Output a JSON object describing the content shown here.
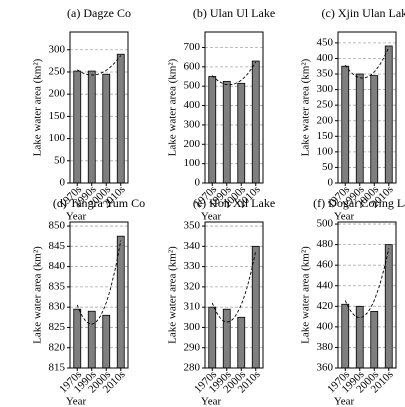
{
  "chart_data": [
    {
      "type": "bar",
      "title": "(a) Dagze Co",
      "categories": [
        "1970s",
        "1990s",
        "2000s",
        "2010s"
      ],
      "values": [
        252,
        252,
        245,
        290
      ],
      "color": "#7f7f7f",
      "ylim": [
        0,
        340
      ],
      "yticks": [
        0,
        50,
        100,
        150,
        200,
        250,
        300
      ],
      "y_label": "Lake water area (km²)",
      "x_label": "Year",
      "grid": true
    },
    {
      "type": "bar",
      "title": "(b) Ulan Ul Lake",
      "categories": [
        "1970s",
        "1990s",
        "2000s",
        "2010s"
      ],
      "values": [
        550,
        525,
        515,
        630
      ],
      "color": "#7f7f7f",
      "ylim": [
        0,
        780
      ],
      "yticks": [
        0,
        100,
        200,
        300,
        400,
        500,
        600,
        700
      ],
      "y_label": "Lake water area (km²)",
      "x_label": "Year",
      "grid": true
    },
    {
      "type": "bar",
      "title": "(c) Xjin Ulan Lake",
      "categories": [
        "1970s",
        "1990s",
        "2000s",
        "2010s"
      ],
      "values": [
        375,
        350,
        345,
        440
      ],
      "color": "#7f7f7f",
      "ylim": [
        0,
        485
      ],
      "yticks": [
        0,
        50,
        100,
        150,
        200,
        250,
        300,
        350,
        400,
        450
      ],
      "y_label": "Lake water area (km²)",
      "x_label": "Year",
      "grid": true
    },
    {
      "type": "bar",
      "title": "(d) Tangra Yum Co",
      "categories": [
        "1970s",
        "1990s",
        "2000s",
        "2010s"
      ],
      "values": [
        829.5,
        829,
        828,
        847.5
      ],
      "color": "#7f7f7f",
      "ylim": [
        815,
        851
      ],
      "yticks": [
        815,
        820,
        825,
        830,
        835,
        840,
        845,
        850
      ],
      "y_label": "Lake water area (km²)",
      "x_label": "Year",
      "grid": true
    },
    {
      "type": "bar",
      "title": "(e) Hoh Xil Lake",
      "categories": [
        "1970s",
        "1990s",
        "2000s",
        "2010s"
      ],
      "values": [
        310,
        309,
        305,
        340
      ],
      "color": "#7f7f7f",
      "ylim": [
        280,
        352
      ],
      "yticks": [
        280,
        290,
        300,
        310,
        320,
        330,
        340,
        350
      ],
      "y_label": "Lake water area (km²)",
      "x_label": "Year",
      "grid": true
    },
    {
      "type": "bar",
      "title": "(f) Dogai Coring Lake",
      "categories": [
        "1970s",
        "1990s",
        "2000s",
        "2010s"
      ],
      "values": [
        422,
        420,
        415,
        480
      ],
      "color": "#7f7f7f",
      "ylim": [
        360,
        502
      ],
      "yticks": [
        360,
        380,
        400,
        420,
        440,
        460,
        480,
        500
      ],
      "y_label": "Lake water area (km²)",
      "x_label": "Year",
      "grid": true
    }
  ]
}
